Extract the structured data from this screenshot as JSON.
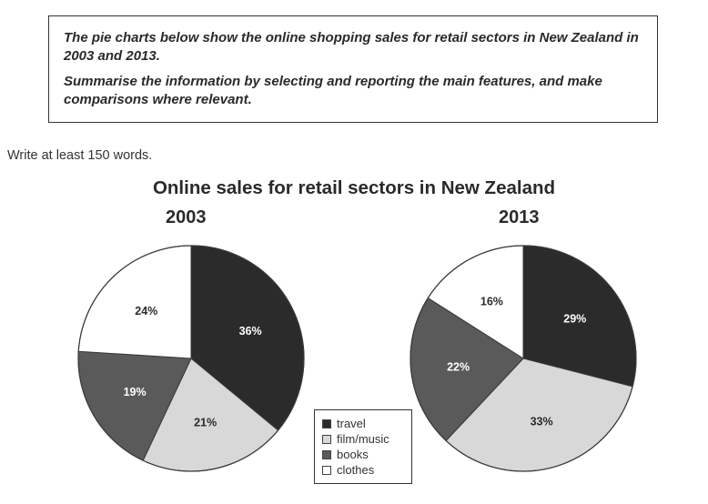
{
  "task": {
    "prompt_lines": [
      "The pie charts below show the online shopping sales for retail sectors in New Zealand in 2003 and 2013.",
      "Summarise the information by selecting and reporting the main features, and make comparisons where relevant."
    ],
    "instruction": "Write at least 150 words."
  },
  "chart_data": {
    "type": "pie",
    "title": "Online sales for retail sectors in New Zealand",
    "categories": [
      "travel",
      "film/music",
      "books",
      "clothes"
    ],
    "colors": {
      "travel": "#2b2b2b",
      "film/music": "#d8d8d8",
      "books": "#5a5a5a",
      "clothes": "#ffffff"
    },
    "pies": [
      {
        "year": "2003",
        "values": [
          36,
          21,
          19,
          24
        ]
      },
      {
        "year": "2013",
        "values": [
          29,
          33,
          22,
          16
        ]
      }
    ],
    "legend_position": "bottom-center"
  }
}
